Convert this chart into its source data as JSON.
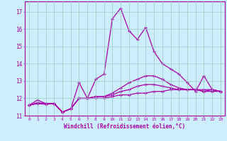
{
  "xlabel": "Windchill (Refroidissement éolien,°C)",
  "bg_color": "#cceeff",
  "line_color": "#aa00aa",
  "grid_color": "#99ccbb",
  "xlim": [
    -0.5,
    23.5
  ],
  "ylim": [
    11.0,
    17.6
  ],
  "yticks": [
    11,
    12,
    13,
    14,
    15,
    16,
    17
  ],
  "xticks": [
    0,
    1,
    2,
    3,
    4,
    5,
    6,
    7,
    8,
    9,
    10,
    11,
    12,
    13,
    14,
    15,
    16,
    17,
    18,
    19,
    20,
    21,
    22,
    23
  ],
  "series": [
    [
      11.6,
      11.9,
      11.7,
      11.7,
      11.2,
      11.4,
      12.9,
      12.0,
      13.1,
      13.4,
      16.6,
      17.2,
      15.9,
      15.4,
      16.1,
      14.7,
      14.0,
      13.7,
      13.4,
      12.9,
      12.4,
      13.3,
      12.5,
      12.4
    ],
    [
      11.6,
      11.7,
      11.7,
      11.7,
      11.2,
      11.4,
      12.0,
      12.0,
      12.1,
      12.1,
      12.3,
      12.6,
      12.9,
      13.1,
      13.3,
      13.3,
      13.1,
      12.8,
      12.6,
      12.5,
      12.5,
      12.5,
      12.5,
      12.4
    ],
    [
      11.6,
      11.75,
      11.7,
      11.7,
      11.2,
      11.4,
      12.0,
      12.0,
      12.1,
      12.1,
      12.2,
      12.4,
      12.5,
      12.7,
      12.8,
      12.8,
      12.7,
      12.6,
      12.5,
      12.5,
      12.5,
      12.4,
      12.5,
      12.4
    ],
    [
      11.6,
      11.7,
      11.65,
      11.7,
      11.2,
      11.4,
      12.0,
      12.0,
      12.0,
      12.0,
      12.1,
      12.2,
      12.2,
      12.3,
      12.3,
      12.4,
      12.4,
      12.5,
      12.5,
      12.5,
      12.5,
      12.4,
      12.4,
      12.4
    ]
  ]
}
